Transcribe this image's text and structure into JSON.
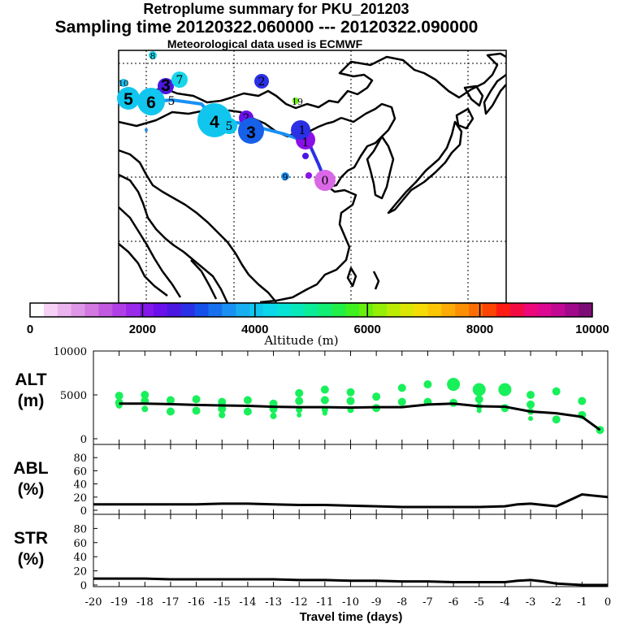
{
  "titles": {
    "line1": "Retroplume summary for PKU_201203",
    "line2": "Sampling time   20120322.060000 --- 20120322.090000",
    "line3": "Meteorological data used is ECMWF"
  },
  "colorbar": {
    "label": "Altitude (m)",
    "ticks": [
      "0",
      "2000",
      "4000",
      "6000",
      "8000",
      "10000"
    ],
    "colors": [
      "#ffffff",
      "#f6d2f6",
      "#eab4ee",
      "#de96e6",
      "#d278e0",
      "#c25ae0",
      "#b040e6",
      "#9a2aea",
      "#8418ea",
      "#6a10ea",
      "#4a18e0",
      "#2a30e4",
      "#1650ea",
      "#1870ee",
      "#1a90f2",
      "#18aef0",
      "#10c6ee",
      "#0ad8ea",
      "#06e2d6",
      "#06e8ba",
      "#0aec98",
      "#10ee74",
      "#20ef48",
      "#40ef20",
      "#68ef0c",
      "#96ee06",
      "#bcec04",
      "#dce604",
      "#f4dc04",
      "#fcc604",
      "#fcac04",
      "#fc9004",
      "#fc6e04",
      "#fc4404",
      "#fc1c14",
      "#f40a42",
      "#ec087a",
      "#dc0892",
      "#c20892",
      "#a00a8a",
      "#7e0c76"
    ]
  },
  "map": {
    "plume_points": [
      {
        "label": "0",
        "color": "#da68e6",
        "size": "med"
      },
      {
        "label": "1",
        "color": "#8a10e8",
        "size": "large"
      },
      {
        "label": "1",
        "color": "#2a30e4",
        "size": "large"
      },
      {
        "label": "2",
        "color": "#6a10ea",
        "size": "med"
      },
      {
        "label": "2",
        "color": "#2a30e4",
        "size": "med"
      },
      {
        "label": "3",
        "color": "#1660ea",
        "size": "large"
      },
      {
        "label": "3",
        "color": "#4a18e0",
        "size": "med"
      },
      {
        "label": "4",
        "color": "#10c6ee",
        "size": "xlarge"
      },
      {
        "label": "5",
        "color": "#10c6ee",
        "size": "large"
      },
      {
        "label": "5",
        "color": "#10c6ee",
        "size": "large"
      },
      {
        "label": "6",
        "color": "#10c6ee",
        "size": "large"
      },
      {
        "label": "7",
        "color": "#18d6ea",
        "size": "med"
      },
      {
        "label": "8",
        "color": "#18d6ea",
        "size": "small"
      },
      {
        "label": "9",
        "color": "#1a90f2",
        "size": "small"
      },
      {
        "label": "10",
        "color": "#18c0ee",
        "size": "small"
      },
      {
        "label": "19",
        "color": "#68ef0c",
        "size": "small"
      }
    ]
  },
  "chart_data": {
    "type": "line",
    "x_label": "Travel time (days)",
    "x_ticks": [
      "-20",
      "-19",
      "-18",
      "-17",
      "-16",
      "-15",
      "-14",
      "-13",
      "-12",
      "-11",
      "-10",
      "-9",
      "-8",
      "-7",
      "-6",
      "-5",
      "-4",
      "-3",
      "-2",
      "-1",
      "0"
    ],
    "xlim": [
      -20,
      0
    ],
    "panels": [
      {
        "name": "ALT",
        "label_line1": "ALT",
        "label_line2": "(m)",
        "ylim": [
          0,
          10000
        ],
        "y_ticks": [
          "10000",
          "5000",
          "0"
        ],
        "y_tick_values": [
          10000,
          5000,
          0
        ],
        "x": [
          -19,
          -18,
          -17,
          -16,
          -15,
          -14,
          -13,
          -12,
          -11,
          -10,
          -9,
          -8,
          -7,
          -6,
          -5,
          -4,
          -3,
          -2,
          -1,
          -0.3
        ],
        "values": [
          4000,
          4000,
          3950,
          3850,
          3800,
          3750,
          3650,
          3600,
          3600,
          3550,
          3600,
          3600,
          3900,
          4000,
          3700,
          3650,
          3100,
          2900,
          2500,
          1000
        ],
        "cluster_points": [
          {
            "x": -19,
            "y": [
              4100,
              4900,
              3800
            ]
          },
          {
            "x": -18,
            "y": [
              4300,
              5000,
              3400
            ]
          },
          {
            "x": -17,
            "y": [
              4400,
              3100
            ]
          },
          {
            "x": -16,
            "y": [
              4500,
              3200
            ]
          },
          {
            "x": -15,
            "y": [
              4200,
              3400,
              2700
            ]
          },
          {
            "x": -14,
            "y": [
              4400,
              3100
            ]
          },
          {
            "x": -13,
            "y": [
              4000,
              3400,
              2600
            ]
          },
          {
            "x": -12,
            "y": [
              5200,
              4300,
              3300,
              2700
            ]
          },
          {
            "x": -11,
            "y": [
              5600,
              4400,
              3300,
              2900
            ]
          },
          {
            "x": -10,
            "y": [
              5300,
              4300,
              3300
            ]
          },
          {
            "x": -9,
            "y": [
              4800,
              3500
            ]
          },
          {
            "x": -8,
            "y": [
              5800,
              4200
            ]
          },
          {
            "x": -7,
            "y": [
              6200,
              4200
            ]
          },
          {
            "x": -6,
            "y": [
              6200,
              4100
            ]
          },
          {
            "x": -5,
            "y": [
              5600,
              4500,
              3700,
              3200
            ]
          },
          {
            "x": -4,
            "y": [
              5600,
              3500
            ]
          },
          {
            "x": -3,
            "y": [
              5000,
              3900,
              3100,
              2300
            ]
          },
          {
            "x": -2,
            "y": [
              5400,
              2200
            ]
          },
          {
            "x": -1,
            "y": [
              4300,
              2700
            ]
          },
          {
            "x": -0.3,
            "y": [
              1000
            ]
          }
        ]
      },
      {
        "name": "ABL",
        "label_line1": "ABL",
        "label_line2": "(%)",
        "ylim": [
          0,
          100
        ],
        "y_ticks": [
          "80",
          "60",
          "40",
          "20",
          "0"
        ],
        "y_tick_values": [
          80,
          60,
          40,
          20,
          0
        ],
        "x": [
          -20,
          -19,
          -18,
          -17,
          -16,
          -15,
          -14,
          -13,
          -12,
          -11,
          -10,
          -9,
          -8,
          -7,
          -6,
          -5,
          -4,
          -3.5,
          -3,
          -2.5,
          -2,
          -1.5,
          -1,
          -0.5,
          0
        ],
        "values": [
          9,
          9,
          9,
          9,
          9,
          10,
          10,
          9,
          8,
          8,
          7,
          6,
          5,
          5,
          5,
          5,
          6,
          9,
          10,
          8,
          6,
          15,
          24,
          22,
          20
        ]
      },
      {
        "name": "STR",
        "label_line1": "STR",
        "label_line2": "(%)",
        "ylim": [
          0,
          100
        ],
        "y_ticks": [
          "80",
          "60",
          "40",
          "20",
          "0"
        ],
        "y_tick_values": [
          80,
          60,
          40,
          20,
          0
        ],
        "x": [
          -20,
          -19,
          -18,
          -17,
          -16,
          -15,
          -14,
          -13,
          -12,
          -11,
          -10,
          -9,
          -8,
          -7,
          -6,
          -5,
          -4,
          -3.5,
          -3,
          -2.5,
          -2,
          -1.5,
          -1,
          -0.5,
          0
        ],
        "values": [
          9,
          9,
          9,
          8,
          8,
          8,
          8,
          8,
          7,
          7,
          6,
          6,
          5,
          5,
          4,
          4,
          4,
          6,
          7,
          5,
          2,
          1,
          0,
          0,
          0
        ]
      }
    ]
  }
}
